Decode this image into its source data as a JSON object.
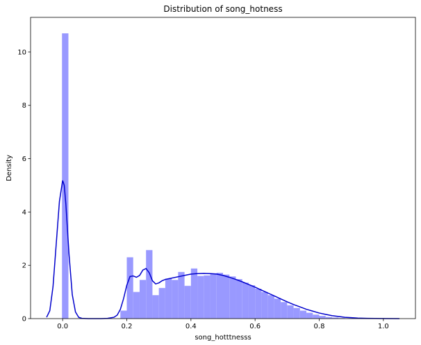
{
  "chart_data": {
    "type": "bar",
    "title": "Distribution of song_hotness",
    "xlabel": "song_hotttnesss",
    "ylabel": "Density",
    "xlim": [
      -0.1,
      1.1
    ],
    "ylim": [
      0,
      11.3
    ],
    "x_ticks": [
      0.0,
      0.2,
      0.4,
      0.6,
      0.8,
      1.0
    ],
    "x_tick_labels": [
      "0.0",
      "0.2",
      "0.4",
      "0.6",
      "0.8",
      "1.0"
    ],
    "y_ticks": [
      0,
      2,
      4,
      6,
      8,
      10
    ],
    "y_tick_labels": [
      "0",
      "2",
      "4",
      "6",
      "8",
      "10"
    ],
    "grid": false,
    "bar_color": "#9999ff",
    "line_color": "#0000cc",
    "histogram": {
      "bin_width": 0.02,
      "bins": [
        {
          "x0": -0.002,
          "x1": 0.018,
          "density": 10.7
        },
        {
          "x0": 0.18,
          "x1": 0.2,
          "density": 0.3
        },
        {
          "x0": 0.2,
          "x1": 0.22,
          "density": 2.3
        },
        {
          "x0": 0.22,
          "x1": 0.24,
          "density": 1.0
        },
        {
          "x0": 0.24,
          "x1": 0.26,
          "density": 1.45
        },
        {
          "x0": 0.26,
          "x1": 0.28,
          "density": 2.57
        },
        {
          "x0": 0.28,
          "x1": 0.3,
          "density": 0.88
        },
        {
          "x0": 0.3,
          "x1": 0.32,
          "density": 1.15
        },
        {
          "x0": 0.32,
          "x1": 0.34,
          "density": 1.5
        },
        {
          "x0": 0.34,
          "x1": 0.36,
          "density": 1.45
        },
        {
          "x0": 0.36,
          "x1": 0.38,
          "density": 1.75
        },
        {
          "x0": 0.38,
          "x1": 0.4,
          "density": 1.23
        },
        {
          "x0": 0.4,
          "x1": 0.42,
          "density": 1.88
        },
        {
          "x0": 0.42,
          "x1": 0.44,
          "density": 1.6
        },
        {
          "x0": 0.44,
          "x1": 0.46,
          "density": 1.62
        },
        {
          "x0": 0.46,
          "x1": 0.48,
          "density": 1.7
        },
        {
          "x0": 0.48,
          "x1": 0.5,
          "density": 1.72
        },
        {
          "x0": 0.5,
          "x1": 0.52,
          "density": 1.65
        },
        {
          "x0": 0.52,
          "x1": 0.54,
          "density": 1.58
        },
        {
          "x0": 0.54,
          "x1": 0.56,
          "density": 1.48
        },
        {
          "x0": 0.56,
          "x1": 0.58,
          "density": 1.35
        },
        {
          "x0": 0.58,
          "x1": 0.6,
          "density": 1.25
        },
        {
          "x0": 0.6,
          "x1": 0.62,
          "density": 1.12
        },
        {
          "x0": 0.62,
          "x1": 0.64,
          "density": 1.0
        },
        {
          "x0": 0.64,
          "x1": 0.66,
          "density": 0.88
        },
        {
          "x0": 0.66,
          "x1": 0.68,
          "density": 0.75
        },
        {
          "x0": 0.68,
          "x1": 0.7,
          "density": 0.62
        },
        {
          "x0": 0.7,
          "x1": 0.72,
          "density": 0.5
        },
        {
          "x0": 0.72,
          "x1": 0.74,
          "density": 0.4
        },
        {
          "x0": 0.74,
          "x1": 0.76,
          "density": 0.3
        },
        {
          "x0": 0.76,
          "x1": 0.78,
          "density": 0.22
        },
        {
          "x0": 0.78,
          "x1": 0.8,
          "density": 0.15
        },
        {
          "x0": 0.8,
          "x1": 0.82,
          "density": 0.1
        },
        {
          "x0": 0.82,
          "x1": 0.84,
          "density": 0.06
        },
        {
          "x0": 0.84,
          "x1": 0.86,
          "density": 0.04
        },
        {
          "x0": 0.86,
          "x1": 0.88,
          "density": 0.02
        },
        {
          "x0": 0.88,
          "x1": 0.9,
          "density": 0.01
        }
      ]
    },
    "kde": {
      "x": [
        -0.05,
        -0.04,
        -0.03,
        -0.02,
        -0.01,
        0.0,
        0.005,
        0.01,
        0.02,
        0.03,
        0.04,
        0.05,
        0.06,
        0.08,
        0.1,
        0.12,
        0.14,
        0.16,
        0.17,
        0.18,
        0.19,
        0.2,
        0.21,
        0.22,
        0.23,
        0.24,
        0.25,
        0.26,
        0.27,
        0.28,
        0.29,
        0.3,
        0.31,
        0.32,
        0.34,
        0.36,
        0.38,
        0.4,
        0.42,
        0.44,
        0.46,
        0.48,
        0.5,
        0.52,
        0.54,
        0.56,
        0.58,
        0.6,
        0.62,
        0.64,
        0.66,
        0.68,
        0.7,
        0.72,
        0.74,
        0.76,
        0.78,
        0.8,
        0.82,
        0.84,
        0.86,
        0.88,
        0.9,
        0.92,
        0.95,
        1.0,
        1.05
      ],
      "y": [
        0.05,
        0.3,
        1.2,
        2.8,
        4.4,
        5.18,
        5.0,
        4.3,
        2.4,
        0.9,
        0.25,
        0.05,
        0.01,
        0.0,
        0.0,
        0.0,
        0.01,
        0.05,
        0.13,
        0.35,
        0.75,
        1.25,
        1.58,
        1.6,
        1.55,
        1.62,
        1.82,
        1.88,
        1.72,
        1.42,
        1.3,
        1.34,
        1.42,
        1.47,
        1.52,
        1.57,
        1.62,
        1.67,
        1.69,
        1.7,
        1.69,
        1.67,
        1.62,
        1.55,
        1.47,
        1.38,
        1.28,
        1.18,
        1.07,
        0.96,
        0.85,
        0.74,
        0.63,
        0.53,
        0.44,
        0.35,
        0.28,
        0.21,
        0.16,
        0.11,
        0.08,
        0.05,
        0.035,
        0.02,
        0.01,
        0.003,
        0.0
      ]
    }
  }
}
